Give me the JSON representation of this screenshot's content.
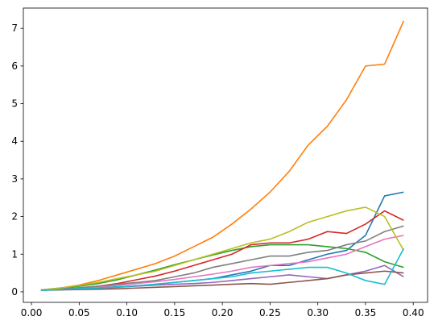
{
  "chart_data": {
    "type": "line",
    "x": [
      0.01,
      0.03,
      0.05,
      0.07,
      0.09,
      0.11,
      0.13,
      0.15,
      0.17,
      0.19,
      0.21,
      0.23,
      0.25,
      0.27,
      0.29,
      0.31,
      0.33,
      0.35,
      0.37,
      0.39
    ],
    "series": [
      {
        "color": "#1f77b4",
        "values": [
          0.05,
          0.07,
          0.09,
          0.11,
          0.13,
          0.16,
          0.2,
          0.25,
          0.3,
          0.35,
          0.45,
          0.55,
          0.7,
          0.7,
          0.85,
          1.0,
          1.1,
          1.5,
          2.55,
          2.65
        ]
      },
      {
        "color": "#ff7f0e",
        "values": [
          0.05,
          0.1,
          0.18,
          0.3,
          0.45,
          0.6,
          0.75,
          0.95,
          1.2,
          1.45,
          1.8,
          2.2,
          2.65,
          3.2,
          3.9,
          4.4,
          5.1,
          6.0,
          6.05,
          7.2
        ]
      },
      {
        "color": "#2ca02c",
        "values": [
          0.05,
          0.1,
          0.15,
          0.22,
          0.32,
          0.45,
          0.58,
          0.72,
          0.85,
          0.98,
          1.1,
          1.2,
          1.25,
          1.25,
          1.25,
          1.2,
          1.15,
          1.05,
          0.8,
          0.65
        ]
      },
      {
        "color": "#d62728",
        "values": [
          0.05,
          0.07,
          0.1,
          0.15,
          0.22,
          0.32,
          0.42,
          0.55,
          0.7,
          0.85,
          1.0,
          1.25,
          1.3,
          1.3,
          1.4,
          1.6,
          1.55,
          1.8,
          2.15,
          1.9
        ]
      },
      {
        "color": "#9467bd",
        "values": [
          0.04,
          0.06,
          0.08,
          0.1,
          0.12,
          0.15,
          0.18,
          0.2,
          0.22,
          0.25,
          0.3,
          0.35,
          0.4,
          0.45,
          0.4,
          0.35,
          0.45,
          0.55,
          0.7,
          0.4
        ]
      },
      {
        "color": "#8c564b",
        "values": [
          0.04,
          0.05,
          0.06,
          0.07,
          0.08,
          0.1,
          0.12,
          0.14,
          0.16,
          0.18,
          0.2,
          0.22,
          0.2,
          0.25,
          0.3,
          0.35,
          0.45,
          0.5,
          0.55,
          0.5
        ]
      },
      {
        "color": "#e377c2",
        "values": [
          0.05,
          0.07,
          0.1,
          0.13,
          0.17,
          0.22,
          0.27,
          0.33,
          0.4,
          0.47,
          0.55,
          0.65,
          0.7,
          0.75,
          0.8,
          0.9,
          1.0,
          1.2,
          1.4,
          1.5
        ]
      },
      {
        "color": "#7f7f7f",
        "values": [
          0.05,
          0.08,
          0.11,
          0.15,
          0.2,
          0.25,
          0.3,
          0.4,
          0.5,
          0.65,
          0.75,
          0.85,
          0.95,
          0.95,
          1.05,
          1.1,
          1.25,
          1.35,
          1.6,
          1.75
        ]
      },
      {
        "color": "#bcbd22",
        "values": [
          0.05,
          0.1,
          0.17,
          0.25,
          0.35,
          0.45,
          0.55,
          0.7,
          0.85,
          1.0,
          1.15,
          1.3,
          1.4,
          1.6,
          1.85,
          2.0,
          2.15,
          2.25,
          2.0,
          1.1
        ]
      },
      {
        "color": "#17becf",
        "values": [
          0.04,
          0.06,
          0.08,
          0.1,
          0.13,
          0.16,
          0.2,
          0.25,
          0.3,
          0.35,
          0.4,
          0.5,
          0.55,
          0.6,
          0.65,
          0.65,
          0.5,
          0.3,
          0.2,
          1.15
        ]
      }
    ],
    "xlim": [
      -0.0085,
      0.415
    ],
    "ylim": [
      -0.28,
      7.54
    ],
    "xticks": [
      {
        "value": 0.0,
        "label": "0.00"
      },
      {
        "value": 0.05,
        "label": "0.05"
      },
      {
        "value": 0.1,
        "label": "0.10"
      },
      {
        "value": 0.15,
        "label": "0.15"
      },
      {
        "value": 0.2,
        "label": "0.20"
      },
      {
        "value": 0.25,
        "label": "0.25"
      },
      {
        "value": 0.3,
        "label": "0.30"
      },
      {
        "value": 0.35,
        "label": "0.35"
      },
      {
        "value": 0.4,
        "label": "0.40"
      }
    ],
    "yticks": [
      0,
      1,
      2,
      3,
      4,
      5,
      6,
      7
    ]
  }
}
